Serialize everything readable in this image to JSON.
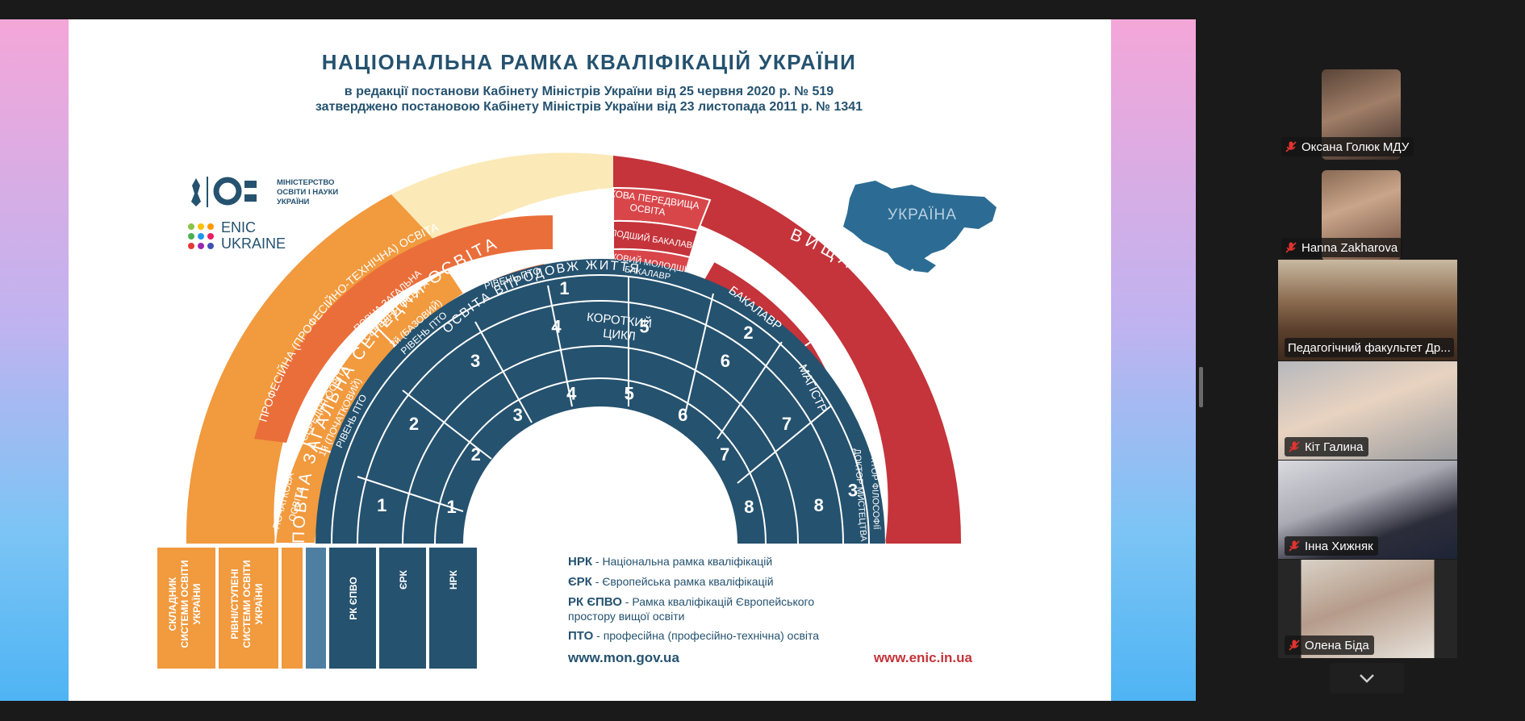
{
  "colors": {
    "navy": "#25526f",
    "blue": "#2c6c94",
    "red": "#c4343a",
    "orange": "#f19a3e",
    "deep_orange": "#ea6e3a",
    "cream": "#fbe9b7",
    "green": "#2ecc71"
  },
  "slide": {
    "title": "НАЦІОНАЛЬНА РАМКА КВАЛІФІКАЦІЙ УКРАЇНИ",
    "subtitle1": "в редакції постанови Кабінету Міністрів України від 25 червня 2020 р. № 519",
    "subtitle2": "затверджено постановою Кабінету Міністрів України від 23 листопада 2011 р. № 1341",
    "logo_ministry": [
      "МІНІСТЕРСТВО",
      "ОСВІТИ І НАУКИ",
      "УКРАЇНИ"
    ],
    "logo_enic": [
      "ENIC",
      "UKRAINE"
    ],
    "map_label": "УКРАЇНА",
    "outer_left": "ПОВНА  ЗАГАЛЬНА  СЕРЕДНЯ  ОСВІТА",
    "outer_right": "ВИЩА  ОСВІТА",
    "prof": "ПРОФЕСІЙНА (ПРОФЕСІЙНО-ТЕХНІЧНА) ОСВІТА",
    "pochatkova": [
      "ПОЧАТКОВА",
      "ОСВІТА"
    ],
    "bazova": [
      "БАЗОВА",
      "СЕРЕДНЯ ОСВІТА"
    ],
    "povna": [
      "ПОВНА ЗАГАЛЬНА",
      "СЕРЕДНЯ ОСВІТА"
    ],
    "pto1": [
      "1й (ПОЧАТКОВИЙ)",
      "РІВЕНЬ ПТО"
    ],
    "pto2": [
      "2й (БАЗОВИЙ)",
      "РІВЕНЬ ПТО"
    ],
    "pto3": [
      "3й (ВИЩИЙ)",
      "РІВЕНЬ ПТО"
    ],
    "fahova_peredvyshcha": [
      "ФАХОВА ПЕРЕДВИЩА",
      "ОСВІТА"
    ],
    "molodshyi": "МОЛОДШИЙ БАКАЛАВР",
    "fahovyi_molodshyi": [
      "ФАХОВИЙ МОЛОДШИЙ",
      "БАКАЛАВР"
    ],
    "bakalavr": "БАКАЛАВР",
    "magistr": "МАГІСТР",
    "doktor_filosofii": "ДОКТОР ФІЛОСОФІЇ",
    "doktor_mystetstva": "ДОКТОР МИСТЕЦТВА",
    "lifelong": "ОСВІТА  ВПРОДОВЖ  ЖИТТЯ",
    "short_cycle": [
      "КОРОТКИЙ",
      "ЦИКЛ"
    ],
    "rk_levels": [
      "1",
      "2",
      "3",
      "4",
      "5",
      "6",
      "7",
      "8"
    ],
    "erk_levels": [
      "1",
      "2",
      "3",
      "4",
      "5",
      "6",
      "7",
      "8"
    ],
    "rk_epvo_levels": [
      "1",
      "2",
      "3"
    ],
    "col_skladnyk": [
      "СКЛАДНИК",
      "СИСТЕМИ ОСВІТИ",
      "УКРАЇНИ"
    ],
    "col_rivni": [
      "РІВНІ/СТУПЕНІ",
      "СИСТЕМИ ОСВІТИ",
      "УКРАЇНИ"
    ],
    "col_rk_epvo": "РК ЄПВО",
    "col_erk": "ЄРК",
    "col_nrk": "НРК",
    "legend": [
      {
        "abbr": "НРК",
        "text": " - Національна рамка кваліфікацій"
      },
      {
        "abbr": "ЄРК",
        "text": " - Європейська рамка кваліфікацій"
      },
      {
        "abbr": "РК ЄПВО",
        "text": " - Рамка кваліфікацій Європейського"
      },
      {
        "abbr": "",
        "text": "простору вищої освіти"
      },
      {
        "abbr": "ПТО",
        "text": " -  професійна (професійно-технічна) освіта"
      }
    ],
    "url_mon": "www.mon.gov.ua",
    "url_enic": "www.enic.in.ua"
  },
  "participants": [
    {
      "name": "Оксана Голюк МДУ",
      "muted": true
    },
    {
      "name": "Hanna Zakharova",
      "muted": true
    },
    {
      "name": "Педагогічний факультет Др...",
      "muted": false
    },
    {
      "name": "Кіт Галина",
      "muted": true
    },
    {
      "name": "Інна Хижняк",
      "muted": true
    },
    {
      "name": "Олена Біда",
      "muted": true
    }
  ]
}
